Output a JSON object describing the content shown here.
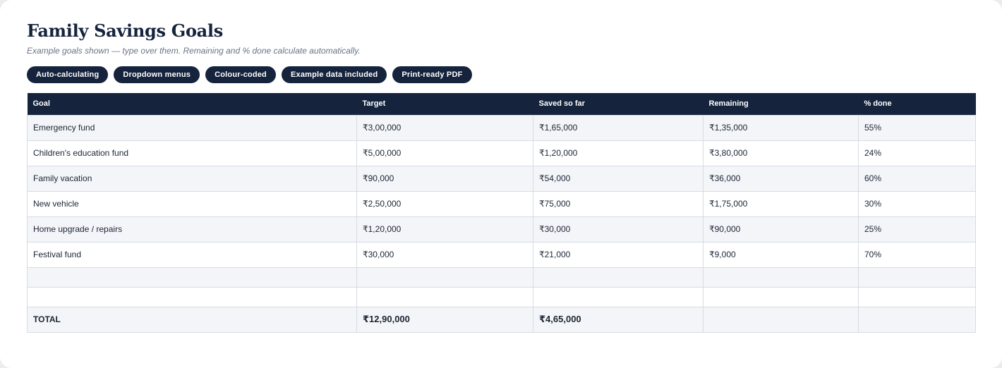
{
  "header": {
    "title": "Family Savings Goals",
    "subtitle": "Example goals shown — type over them. Remaining and % done calculate automatically."
  },
  "badges": [
    "Auto-calculating",
    "Dropdown menus",
    "Colour-coded",
    "Example data included",
    "Print-ready PDF"
  ],
  "table": {
    "columns": [
      "Goal",
      "Target",
      "Saved so far",
      "Remaining",
      "% done"
    ],
    "rows": [
      [
        "Emergency fund",
        "₹3,00,000",
        "₹1,65,000",
        "₹1,35,000",
        "55%"
      ],
      [
        "Children's education fund",
        "₹5,00,000",
        "₹1,20,000",
        "₹3,80,000",
        "24%"
      ],
      [
        "Family vacation",
        "₹90,000",
        "₹54,000",
        "₹36,000",
        "60%"
      ],
      [
        "New vehicle",
        "₹2,50,000",
        "₹75,000",
        "₹1,75,000",
        "30%"
      ],
      [
        "Home upgrade / repairs",
        "₹1,20,000",
        "₹30,000",
        "₹90,000",
        "25%"
      ],
      [
        "Festival fund",
        "₹30,000",
        "₹21,000",
        "₹9,000",
        "70%"
      ],
      [
        "",
        "",
        "",
        "",
        ""
      ],
      [
        "",
        "",
        "",
        "",
        ""
      ]
    ],
    "total": [
      "TOTAL",
      "₹12,90,000",
      "₹4,65,000",
      "",
      ""
    ]
  },
  "colors": {
    "accent": "#15233d",
    "row_alt": "#f4f5f9",
    "border": "#d6dbe3"
  }
}
